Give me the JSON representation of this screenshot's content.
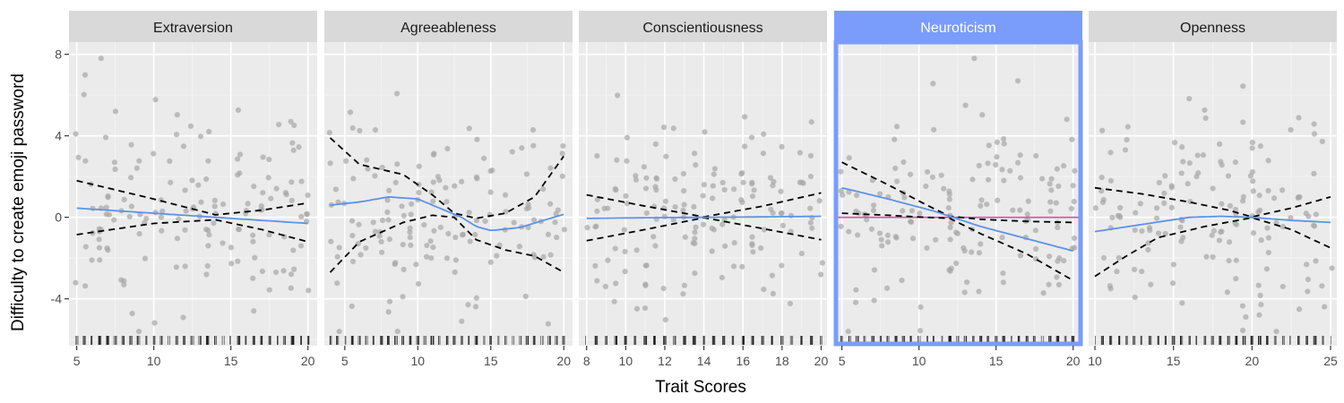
{
  "chart_data": {
    "type": "scatter",
    "xlabel": "Trait Scores",
    "ylabel": "Difficulty to create emoji password",
    "ylim": [
      -6.3,
      8.6
    ],
    "yticks": [
      -4,
      0,
      4,
      8
    ],
    "grid": true,
    "rug": true,
    "colors": {
      "panel_bg": "#ebebeb",
      "strip_bg": "#d9d9d9",
      "highlight": "#7a9cfb",
      "points": "#a6a6a6",
      "smooth_line": "#5b93e8",
      "ci_line": "#000000",
      "zero_line": "#dd4f9b"
    },
    "facets": [
      {
        "label": "Extraversion",
        "highlighted": false,
        "xlim": [
          4.5,
          20.6
        ],
        "xticks": [
          5,
          10,
          15,
          20
        ],
        "trend": [
          [
            5,
            0.45
          ],
          [
            8,
            0.3
          ],
          [
            11,
            0.15
          ],
          [
            14,
            0.0
          ],
          [
            17,
            -0.15
          ],
          [
            20,
            -0.3
          ]
        ],
        "ci_upper": [
          [
            5,
            1.8
          ],
          [
            10,
            0.9
          ],
          [
            14,
            0.12
          ],
          [
            17,
            0.35
          ],
          [
            20,
            0.7
          ]
        ],
        "ci_lower": [
          [
            5,
            -0.85
          ],
          [
            10,
            -0.3
          ],
          [
            14,
            -0.12
          ],
          [
            17,
            -0.6
          ],
          [
            20,
            -1.2
          ]
        ],
        "zero_line": false
      },
      {
        "label": "Agreeableness",
        "highlighted": false,
        "xlim": [
          3.6,
          20.6
        ],
        "xticks": [
          5,
          10,
          15,
          20
        ],
        "trend": [
          [
            4,
            0.6
          ],
          [
            6,
            0.75
          ],
          [
            8,
            1.0
          ],
          [
            10,
            0.9
          ],
          [
            12,
            0.3
          ],
          [
            13,
            0.0
          ],
          [
            14,
            -0.45
          ],
          [
            15,
            -0.65
          ],
          [
            17,
            -0.5
          ],
          [
            20,
            0.15
          ]
        ],
        "ci_upper": [
          [
            4,
            3.9
          ],
          [
            6,
            2.6
          ],
          [
            9,
            2.1
          ],
          [
            11,
            1.1
          ],
          [
            12.5,
            0.2
          ],
          [
            14,
            -0.05
          ],
          [
            16,
            0.2
          ],
          [
            18,
            1.0
          ],
          [
            20,
            3.0
          ]
        ],
        "ci_lower": [
          [
            4,
            -2.7
          ],
          [
            6,
            -1.2
          ],
          [
            9,
            -0.25
          ],
          [
            11,
            0.1
          ],
          [
            12.5,
            0.0
          ],
          [
            14,
            -1.1
          ],
          [
            16,
            -1.6
          ],
          [
            18,
            -1.9
          ],
          [
            20,
            -2.7
          ]
        ],
        "zero_line": false
      },
      {
        "label": "Conscientiousness",
        "highlighted": false,
        "xlim": [
          7.6,
          20.3
        ],
        "xticks": [
          8,
          10,
          12,
          14,
          16,
          18,
          20
        ],
        "trend": [
          [
            8,
            -0.05
          ],
          [
            11,
            -0.02
          ],
          [
            14,
            0.0
          ],
          [
            17,
            0.02
          ],
          [
            20,
            0.05
          ]
        ],
        "ci_upper": [
          [
            8,
            1.1
          ],
          [
            11,
            0.55
          ],
          [
            14,
            0.02
          ],
          [
            17,
            0.55
          ],
          [
            20,
            1.2
          ]
        ],
        "ci_lower": [
          [
            8,
            -1.15
          ],
          [
            11,
            -0.6
          ],
          [
            14,
            -0.02
          ],
          [
            17,
            -0.55
          ],
          [
            20,
            -1.1
          ]
        ],
        "zero_line": false
      },
      {
        "label": "Neuroticism",
        "highlighted": true,
        "xlim": [
          4.5,
          20.6
        ],
        "xticks": [
          5,
          10,
          15,
          20
        ],
        "trend": [
          [
            5,
            1.45
          ],
          [
            8,
            0.9
          ],
          [
            11,
            0.3
          ],
          [
            12,
            0.05
          ],
          [
            14,
            -0.45
          ],
          [
            17,
            -1.05
          ],
          [
            20,
            -1.65
          ]
        ],
        "ci_upper": [
          [
            5,
            2.7
          ],
          [
            8,
            1.6
          ],
          [
            10.5,
            0.6
          ],
          [
            12,
            0.05
          ],
          [
            14,
            -0.1
          ],
          [
            17,
            -0.2
          ],
          [
            20,
            -0.25
          ]
        ],
        "ci_lower": [
          [
            5,
            0.2
          ],
          [
            8,
            0.1
          ],
          [
            10.5,
            0.0
          ],
          [
            12,
            -0.05
          ],
          [
            14,
            -0.8
          ],
          [
            17,
            -1.8
          ],
          [
            20,
            -3.1
          ]
        ],
        "zero_line": true
      },
      {
        "label": "Openness",
        "highlighted": false,
        "xlim": [
          9.6,
          25.4
        ],
        "xticks": [
          10,
          15,
          20,
          25
        ],
        "trend": [
          [
            10,
            -0.7
          ],
          [
            13,
            -0.35
          ],
          [
            16,
            0.0
          ],
          [
            18,
            0.05
          ],
          [
            20,
            0.0
          ],
          [
            22.5,
            -0.15
          ],
          [
            25,
            -0.25
          ]
        ],
        "ci_upper": [
          [
            10,
            1.45
          ],
          [
            13,
            1.15
          ],
          [
            16,
            0.75
          ],
          [
            18.5,
            0.35
          ],
          [
            20,
            0.02
          ],
          [
            22.5,
            0.45
          ],
          [
            25,
            1.0
          ]
        ],
        "ci_lower": [
          [
            10,
            -2.9
          ],
          [
            12,
            -1.9
          ],
          [
            14,
            -1.0
          ],
          [
            17,
            -0.45
          ],
          [
            20,
            -0.02
          ],
          [
            22.5,
            -0.6
          ],
          [
            25,
            -1.5
          ]
        ],
        "zero_line": false
      }
    ]
  }
}
